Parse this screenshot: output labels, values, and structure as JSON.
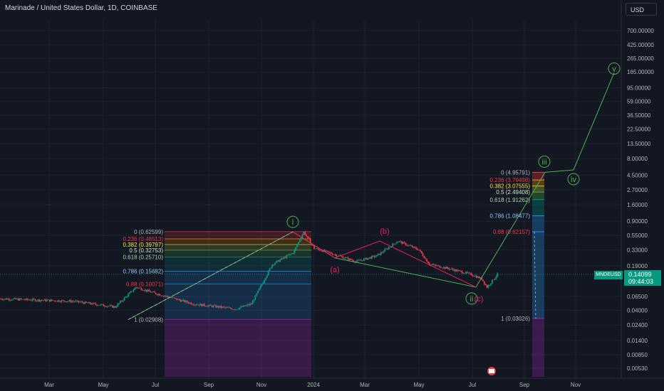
{
  "header": {
    "title": "Marinade / United States Dollar, 1D, COINBASE"
  },
  "currency_button": "USD",
  "symbol_badge": "MNDEUSD",
  "price_badge": {
    "price": "0.14099",
    "countdown": "09:44:03"
  },
  "colors": {
    "background": "#131722",
    "up": "#089981",
    "down": "#f23645",
    "wave_green": "#4caf50",
    "wave_pink": "#e91e63"
  },
  "chart_data": {
    "type": "candlestick",
    "symbol": "MNDEUSD",
    "title": "Marinade / United States Dollar, 1D, COINBASE",
    "scale": "log",
    "current_price": 0.14099,
    "x_ticks": [
      "Mar",
      "May",
      "Jul",
      "Sep",
      "Nov",
      "2024",
      "Mar",
      "May",
      "Jul",
      "Sep",
      "Nov"
    ],
    "y_ticks": [
      "700.00000",
      "425.00000",
      "265.00000",
      "165.00000",
      "95.00000",
      "59.00000",
      "36.50000",
      "22.50000",
      "13.50000",
      "8.00000",
      "4.50000",
      "2.70000",
      "1.60000",
      "0.90000",
      "0.55000",
      "0.33000",
      "0.19000",
      "0.06500",
      "0.04000",
      "0.02400",
      "0.01400",
      "0.00850",
      "0.00530"
    ],
    "price_path": [
      [
        0,
        0.06
      ],
      [
        14,
        0.055
      ],
      [
        22,
        0.045
      ],
      [
        26,
        0.09
      ],
      [
        29,
        0.075
      ],
      [
        37,
        0.05
      ],
      [
        45,
        0.042
      ],
      [
        48,
        0.05
      ],
      [
        50,
        0.1
      ],
      [
        52,
        0.2
      ],
      [
        56,
        0.3
      ],
      [
        58,
        0.62
      ],
      [
        60,
        0.35
      ],
      [
        64,
        0.28
      ],
      [
        68,
        0.22
      ],
      [
        72,
        0.27
      ],
      [
        76,
        0.45
      ],
      [
        80,
        0.33
      ],
      [
        82,
        0.2
      ],
      [
        86,
        0.17
      ],
      [
        90,
        0.14
      ],
      [
        92,
        0.12
      ],
      [
        93,
        0.09
      ],
      [
        95,
        0.14
      ]
    ],
    "fib_left": [
      "0 (0.62599)",
      "0.236 (0.48513)",
      "0.382 (0.39797)",
      "0.5 (0.32753)",
      "0.618 (0.25710)",
      "0.786 (0.15682)",
      "0.88 (0.10071)",
      "1 (0.02908)"
    ],
    "fib_right": [
      "0 (4.95791)",
      "0.236 (3.79498)",
      "0.382 (3.07555)",
      "0.5 (2.49408)",
      "0.618 (1.91262)",
      "0.786 (1.08477)",
      "0.88 (0.62157)",
      "1 (0.03026)"
    ],
    "wave_labels": [
      "i",
      "(a)",
      "(b)",
      "ii",
      "(c)",
      "iii",
      "iv",
      "v"
    ],
    "projection": [
      [
        56,
        0.62
      ],
      [
        95,
        0.09
      ],
      [
        105,
        4.96
      ],
      [
        111,
        5.4
      ],
      [
        117,
        160
      ]
    ]
  }
}
